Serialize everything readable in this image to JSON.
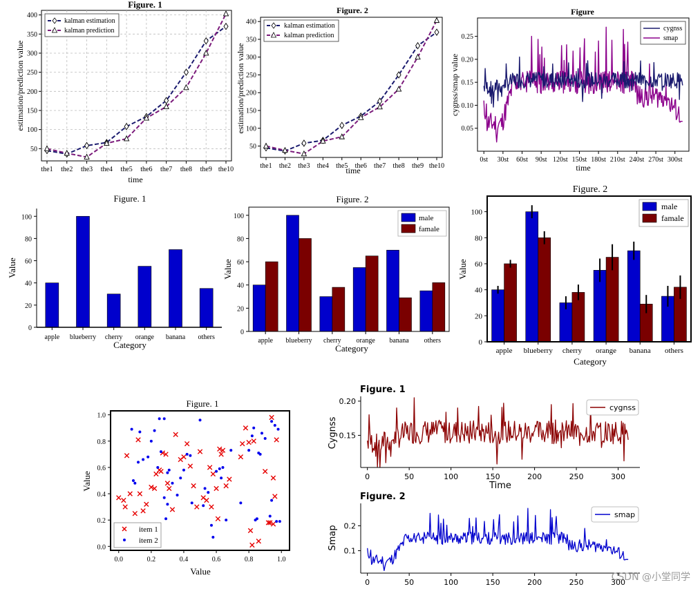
{
  "watermark": "CSDN @小堂同学",
  "colors": {
    "navy": "#1a1a6e",
    "purple": "#7b1b7b",
    "line_purple": "#8b008b",
    "blue": "#0000cc",
    "darkred": "#7a0000",
    "red_x": "#e60000",
    "dot_blue": "#0000ee",
    "cyg_line": "#8b0000",
    "smap_line": "#0000cd"
  },
  "chart_data": [
    {
      "id": "line1",
      "type": "line",
      "title": "Figure. 1",
      "xlabel": "time",
      "ylabel": "estimation/prediction value",
      "categories": [
        "the1",
        "the2",
        "the3",
        "the4",
        "the5",
        "the6",
        "the7",
        "the8",
        "the9",
        "the10"
      ],
      "ylim": [
        18,
        412
      ],
      "yticks": [
        50,
        100,
        150,
        200,
        250,
        300,
        350,
        400
      ],
      "grid": true,
      "series": [
        {
          "name": "kalman estimation",
          "values": [
            45,
            36,
            58,
            66,
            108,
            134,
            176,
            250,
            332,
            370
          ]
        },
        {
          "name": "kalman prediction",
          "values": [
            50,
            38,
            28,
            64,
            76,
            130,
            160,
            210,
            300,
            403
          ]
        }
      ]
    },
    {
      "id": "line2",
      "type": "line",
      "title": "Figure. 2",
      "xlabel": "time",
      "ylabel": "estimation/prediction value",
      "categories": [
        "the1",
        "the2",
        "the3",
        "the4",
        "the5",
        "the6",
        "the7",
        "the8",
        "the9",
        "the10"
      ],
      "ylim": [
        18,
        412
      ],
      "yticks": [
        50,
        100,
        150,
        200,
        250,
        300,
        350,
        400
      ],
      "grid": false,
      "series": [
        {
          "name": "kalman estimation",
          "values": [
            45,
            36,
            58,
            66,
            108,
            134,
            176,
            250,
            332,
            370
          ]
        },
        {
          "name": "kalman prediction",
          "values": [
            50,
            38,
            28,
            64,
            76,
            130,
            160,
            210,
            300,
            403
          ]
        }
      ]
    },
    {
      "id": "ts1",
      "type": "line",
      "title": "Figure",
      "xlabel": "time",
      "ylabel": "cygnss/smap value",
      "xtick_labels": [
        "0st",
        "30st",
        "60st",
        "90st",
        "120st",
        "150st",
        "180st",
        "210st",
        "240st",
        "270st",
        "300st"
      ],
      "xticks": [
        0,
        30,
        60,
        90,
        120,
        150,
        180,
        210,
        240,
        270,
        300
      ],
      "xlim": [
        -10,
        322
      ],
      "ylim": [
        0.0,
        0.29
      ],
      "yticks": [
        0.05,
        0.1,
        0.15,
        0.2,
        0.25
      ],
      "ytick_labels": [
        "0.05",
        "0.10",
        "0.15",
        "0.20",
        "0.25"
      ],
      "series": [
        {
          "name": "cygnss",
          "seed": 7
        },
        {
          "name": "smap",
          "seed": 11
        }
      ]
    },
    {
      "id": "bar1",
      "type": "bar",
      "title": "Figure. 1",
      "xlabel": "Category",
      "ylabel": "Value",
      "categories": [
        "apple",
        "blueberry",
        "cherry",
        "orange",
        "banana",
        "others"
      ],
      "values": [
        40,
        100,
        30,
        55,
        70,
        35
      ],
      "ylim": [
        0,
        107
      ],
      "yticks": [
        0,
        20,
        40,
        60,
        80,
        100
      ]
    },
    {
      "id": "bar2",
      "type": "bar",
      "title": "Figure. 2",
      "xlabel": "Category",
      "ylabel": "Value",
      "categories": [
        "apple",
        "blueberry",
        "cherry",
        "orange",
        "banana",
        "others"
      ],
      "series": [
        {
          "name": "male",
          "values": [
            40,
            100,
            30,
            55,
            70,
            35
          ]
        },
        {
          "name": "famale",
          "values": [
            60,
            80,
            38,
            65,
            29,
            42
          ]
        }
      ],
      "ylim": [
        0,
        107
      ],
      "yticks": [
        0,
        20,
        40,
        60,
        80,
        100
      ]
    },
    {
      "id": "bar3",
      "type": "bar",
      "title": "Figure. 2",
      "xlabel": "Category",
      "ylabel": "Value",
      "categories": [
        "apple",
        "blueberry",
        "cherry",
        "orange",
        "banana",
        "others"
      ],
      "series": [
        {
          "name": "male",
          "values": [
            40,
            100,
            30,
            55,
            70,
            35
          ],
          "errors": [
            3,
            5,
            5,
            9,
            7,
            8
          ]
        },
        {
          "name": "famale",
          "values": [
            60,
            80,
            38,
            65,
            29,
            42
          ],
          "errors": [
            3,
            5,
            6,
            10,
            7,
            9
          ]
        }
      ],
      "ylim": [
        0,
        112
      ],
      "yticks": [
        0,
        20,
        40,
        60,
        80,
        100
      ]
    },
    {
      "id": "scatter1",
      "type": "scatter",
      "title": "Figure. 1",
      "xlabel": "Value",
      "ylabel": "Value",
      "xlim": [
        -0.05,
        1.05
      ],
      "ylim": [
        -0.03,
        1.03
      ],
      "ticks": [
        0.0,
        0.2,
        0.4,
        0.6,
        0.8,
        1.0
      ],
      "tick_labels": [
        "0.0",
        "0.2",
        "0.4",
        "0.6",
        "0.8",
        "1.0"
      ],
      "series": [
        {
          "name": "item 1",
          "marker": "x",
          "points": [
            [
              0.0,
              0.37
            ],
            [
              0.03,
              0.35
            ],
            [
              0.04,
              0.3
            ],
            [
              0.05,
              0.69
            ],
            [
              0.07,
              0.4
            ],
            [
              0.1,
              0.25
            ],
            [
              0.13,
              0.4
            ],
            [
              0.15,
              0.27
            ],
            [
              0.17,
              0.32
            ],
            [
              0.2,
              0.45
            ],
            [
              0.22,
              0.44
            ],
            [
              0.23,
              0.55
            ],
            [
              0.25,
              0.58
            ],
            [
              0.26,
              0.57
            ],
            [
              0.27,
              0.71
            ],
            [
              0.29,
              0.7
            ],
            [
              0.3,
              0.48
            ],
            [
              0.31,
              0.44
            ],
            [
              0.33,
              0.28
            ],
            [
              0.35,
              0.85
            ],
            [
              0.38,
              0.66
            ],
            [
              0.4,
              0.68
            ],
            [
              0.42,
              0.78
            ],
            [
              0.44,
              0.61
            ],
            [
              0.46,
              0.46
            ],
            [
              0.48,
              0.3
            ],
            [
              0.5,
              0.72
            ],
            [
              0.52,
              0.37
            ],
            [
              0.54,
              0.35
            ],
            [
              0.56,
              0.6
            ],
            [
              0.57,
              0.3
            ],
            [
              0.58,
              0.55
            ],
            [
              0.6,
              0.44
            ],
            [
              0.61,
              0.21
            ],
            [
              0.62,
              0.74
            ],
            [
              0.63,
              0.7
            ],
            [
              0.64,
              0.73
            ],
            [
              0.66,
              0.46
            ],
            [
              0.68,
              0.51
            ],
            [
              0.75,
              0.68
            ],
            [
              0.76,
              0.78
            ],
            [
              0.78,
              0.9
            ],
            [
              0.8,
              0.79
            ],
            [
              0.81,
              0.12
            ],
            [
              0.82,
              0.01
            ],
            [
              0.83,
              0.8
            ],
            [
              0.86,
              0.04
            ],
            [
              0.9,
              0.57
            ],
            [
              0.92,
              0.18
            ],
            [
              0.93,
              0.18
            ],
            [
              0.94,
              0.98
            ],
            [
              0.95,
              0.52
            ],
            [
              0.96,
              0.38
            ],
            [
              0.97,
              0.81
            ],
            [
              0.95,
              0.17
            ],
            [
              0.12,
              0.81
            ]
          ]
        },
        {
          "name": "item 2",
          "marker": "o",
          "points": [
            [
              0.02,
              0.17
            ],
            [
              0.08,
              0.89
            ],
            [
              0.09,
              0.5
            ],
            [
              0.1,
              0.48
            ],
            [
              0.12,
              0.64
            ],
            [
              0.13,
              0.87
            ],
            [
              0.15,
              0.66
            ],
            [
              0.18,
              0.68
            ],
            [
              0.2,
              0.8
            ],
            [
              0.22,
              0.88
            ],
            [
              0.24,
              0.6
            ],
            [
              0.25,
              0.97
            ],
            [
              0.26,
              0.72
            ],
            [
              0.28,
              0.97
            ],
            [
              0.28,
              0.37
            ],
            [
              0.29,
              0.21
            ],
            [
              0.3,
              0.32
            ],
            [
              0.31,
              0.58
            ],
            [
              0.33,
              0.48
            ],
            [
              0.36,
              0.39
            ],
            [
              0.38,
              0.52
            ],
            [
              0.4,
              0.58
            ],
            [
              0.42,
              0.7
            ],
            [
              0.44,
              0.69
            ],
            [
              0.45,
              0.33
            ],
            [
              0.5,
              0.96
            ],
            [
              0.52,
              0.31
            ],
            [
              0.53,
              0.44
            ],
            [
              0.55,
              0.41
            ],
            [
              0.57,
              0.16
            ],
            [
              0.58,
              0.07
            ],
            [
              0.6,
              0.57
            ],
            [
              0.62,
              0.59
            ],
            [
              0.63,
              0.52
            ],
            [
              0.64,
              0.6
            ],
            [
              0.66,
              0.2
            ],
            [
              0.69,
              0.73
            ],
            [
              0.75,
              0.33
            ],
            [
              0.8,
              0.73
            ],
            [
              0.82,
              0.84
            ],
            [
              0.83,
              0.9
            ],
            [
              0.84,
              0.2
            ],
            [
              0.85,
              0.21
            ],
            [
              0.86,
              0.71
            ],
            [
              0.87,
              0.7
            ],
            [
              0.88,
              0.86
            ],
            [
              0.9,
              0.82
            ],
            [
              0.93,
              0.23
            ],
            [
              0.94,
              0.35
            ],
            [
              0.94,
              0.95
            ],
            [
              0.96,
              0.92
            ],
            [
              0.97,
              0.19
            ],
            [
              0.98,
              0.89
            ],
            [
              0.99,
              0.19
            ],
            [
              0.16,
              0.1
            ],
            [
              0.3,
              0.56
            ]
          ]
        }
      ]
    },
    {
      "id": "sub1",
      "type": "line",
      "title": "Figure. 1",
      "xlabel": "Time",
      "ylabel": "Cygnss",
      "xlim": [
        -8,
        326
      ],
      "ylim": [
        0.103,
        0.207
      ],
      "xticks": [
        0,
        50,
        100,
        150,
        200,
        250,
        300
      ],
      "yticks": [
        0.15,
        0.2
      ],
      "ytick_labels": [
        "0.15",
        "0.20"
      ],
      "series": [
        {
          "name": "cygnss",
          "seed": 7
        }
      ]
    },
    {
      "id": "sub2",
      "type": "line",
      "title": "Figure. 2",
      "xlabel": "Time",
      "ylabel": "Smap",
      "xlim": [
        -8,
        326
      ],
      "ylim": [
        0.01,
        0.29
      ],
      "xticks": [
        0,
        50,
        100,
        150,
        200,
        250,
        300
      ],
      "yticks": [
        0.1,
        0.2
      ],
      "ytick_labels": [
        "0.1",
        "0.2"
      ],
      "series": [
        {
          "name": "smap",
          "seed": 11
        }
      ]
    }
  ]
}
